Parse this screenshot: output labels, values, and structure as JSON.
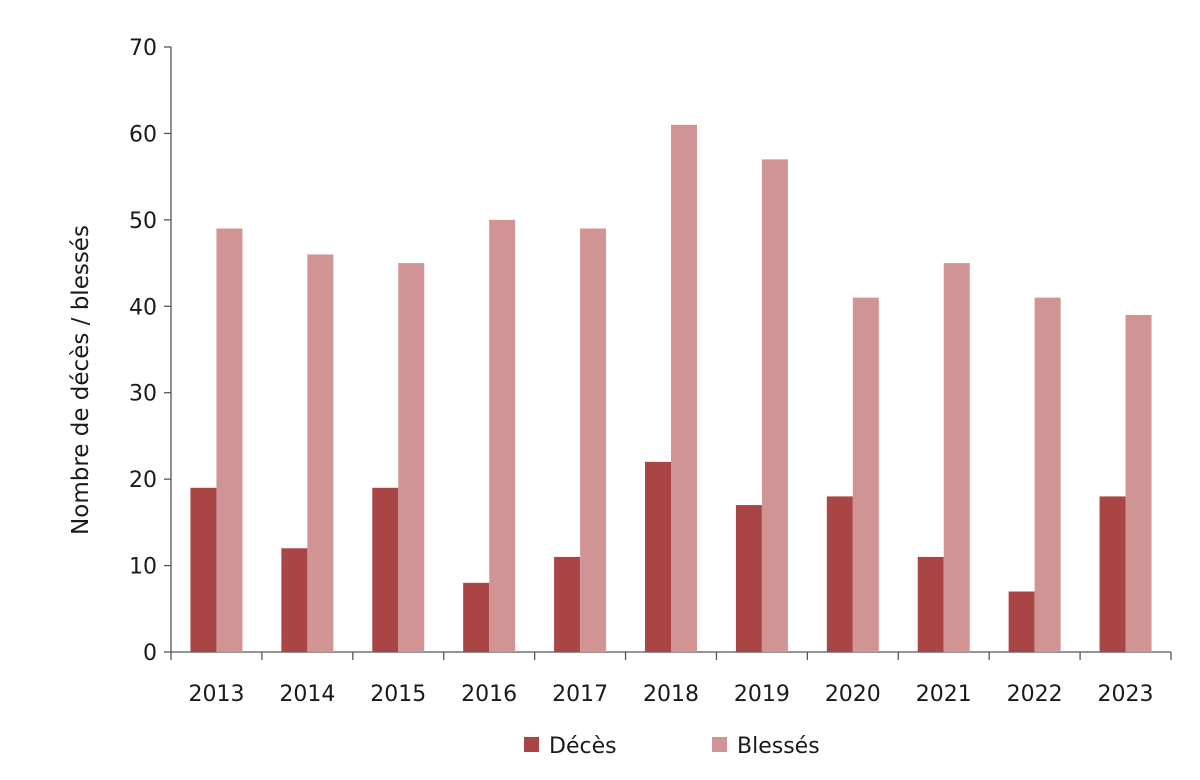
{
  "chart_data": {
    "type": "bar",
    "categories": [
      "2013",
      "2014",
      "2015",
      "2016",
      "2017",
      "2018",
      "2019",
      "2020",
      "2021",
      "2022",
      "2023"
    ],
    "series": [
      {
        "name": "Décès",
        "values": [
          19,
          12,
          19,
          8,
          11,
          22,
          17,
          18,
          11,
          7,
          18
        ],
        "color": "#a94545"
      },
      {
        "name": "Blessés",
        "values": [
          49,
          46,
          45,
          50,
          49,
          61,
          57,
          41,
          45,
          41,
          39
        ],
        "color": "#d19494"
      }
    ],
    "title": "",
    "xlabel": "",
    "ylabel": "Nombre de décès / blessés",
    "ylim": [
      0,
      70
    ],
    "yticks": [
      0,
      10,
      20,
      30,
      40,
      50,
      60,
      70
    ],
    "grid": false,
    "legend_position": "bottom"
  }
}
